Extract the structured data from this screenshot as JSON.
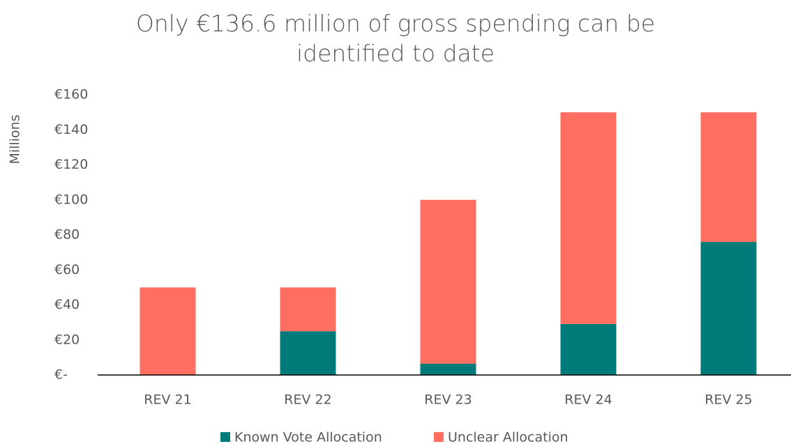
{
  "chart_data": {
    "type": "stacked_bar",
    "title": "Only €136.6 million of gross spending can be identified to date",
    "ylabel": "Millions",
    "categories": [
      "REV 21",
      "REV 22",
      "REV 23",
      "REV 24",
      "REV 25"
    ],
    "series": [
      {
        "name": "Known Vote Allocation",
        "color": "#007b7a",
        "values": [
          0,
          25,
          6.5,
          29.1,
          76
        ]
      },
      {
        "name": "Unclear Allocation",
        "color": "#ff6f61",
        "values": [
          50,
          25,
          93.5,
          120.9,
          74
        ]
      }
    ],
    "ylim": [
      0,
      160
    ],
    "yticks": [
      {
        "value": 0,
        "label": "€-"
      },
      {
        "value": 20,
        "label": "€20"
      },
      {
        "value": 40,
        "label": "€40"
      },
      {
        "value": 60,
        "label": "€60"
      },
      {
        "value": 80,
        "label": "€80"
      },
      {
        "value": 100,
        "label": "€100"
      },
      {
        "value": 120,
        "label": "€120"
      },
      {
        "value": 140,
        "label": "€140"
      },
      {
        "value": 160,
        "label": "€160"
      }
    ],
    "legend": "bottom"
  }
}
